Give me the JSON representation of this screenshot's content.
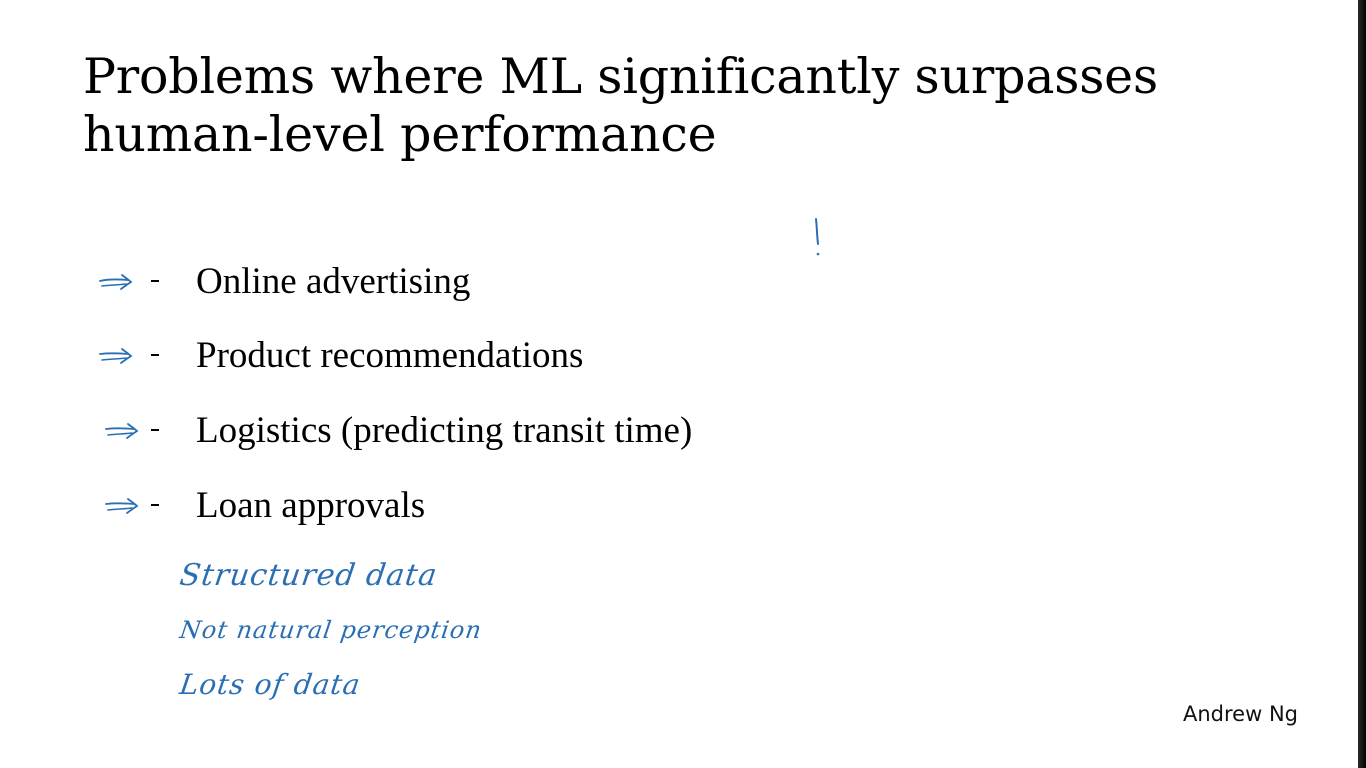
{
  "slide": {
    "title_lines": [
      "Problems where ML significantly surpasses",
      "human-level performance"
    ],
    "bullets": [
      {
        "marker": "-",
        "text": "Online advertising"
      },
      {
        "marker": "-",
        "text": "Product recommendations"
      },
      {
        "marker": "-",
        "text": "Logistics (predicting transit time)"
      },
      {
        "marker": "-",
        "text": "Loan approvals"
      }
    ],
    "handwritten_notes": [
      "Structured data",
      "Not natural perception",
      "Lots of data"
    ],
    "attribution": "Andrew Ng"
  },
  "colors": {
    "ink": "#2a6fb3",
    "text": "#000000",
    "background": "#ffffff"
  }
}
